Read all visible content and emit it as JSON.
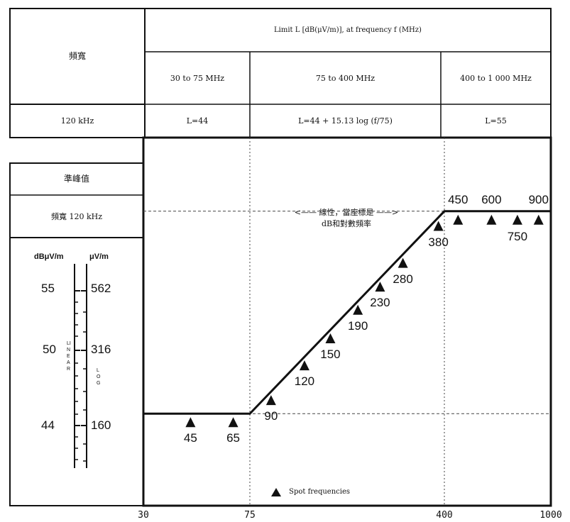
{
  "table": {
    "left_header": "頻寬",
    "top_header": "Limit L [dB(μV/m)], at frequency f (MHz)",
    "ranges": [
      {
        "label": "30 to 75 MHz",
        "formula": "L=44"
      },
      {
        "label": "75 to 400 MHz",
        "formula": "L=44 + 15.13 log (f/75)"
      },
      {
        "label": "400 to 1 000 MHz",
        "formula": "L=55"
      }
    ],
    "bandwidth_value": "120 kHz"
  },
  "side_panel": {
    "detector": "準峰值",
    "bandwidth": "頻寬  120 kHz",
    "left_unit": "dBμV/m",
    "right_unit": "μV/m",
    "scale_rows": [
      {
        "db": "55",
        "uv": "562"
      },
      {
        "db": "50",
        "uv": "316"
      },
      {
        "db": "44",
        "uv": "160"
      }
    ],
    "linear_text": "LINEAR",
    "log_text": "LOG"
  },
  "annotation": {
    "arrow_left": "<——",
    "arrow_right": "——>",
    "line1": "線性，當座標是",
    "line2": "dB和對數頻率"
  },
  "legend": {
    "label": "Spot frequencies"
  },
  "chart_data": {
    "type": "line",
    "x_scale": "log",
    "xlim": [
      30,
      1000
    ],
    "ylim": [
      39,
      59
    ],
    "x_ticks": [
      "30",
      "75",
      "400",
      "1000"
    ],
    "grid": true,
    "limit_line": {
      "x": [
        30,
        75,
        400,
        1000
      ],
      "y": [
        44,
        44,
        55,
        55
      ]
    },
    "spot_frequencies": [
      {
        "f": 45,
        "label": "45"
      },
      {
        "f": 65,
        "label": "65"
      },
      {
        "f": 90,
        "label": "90"
      },
      {
        "f": 120,
        "label": "120"
      },
      {
        "f": 150,
        "label": "150"
      },
      {
        "f": 190,
        "label": "190"
      },
      {
        "f": 230,
        "label": "230"
      },
      {
        "f": 280,
        "label": "280"
      },
      {
        "f": 380,
        "label": "380"
      },
      {
        "f": 450,
        "label": "450"
      },
      {
        "f": 600,
        "label": "600"
      },
      {
        "f": 750,
        "label": "750"
      },
      {
        "f": 900,
        "label": "900"
      }
    ]
  }
}
